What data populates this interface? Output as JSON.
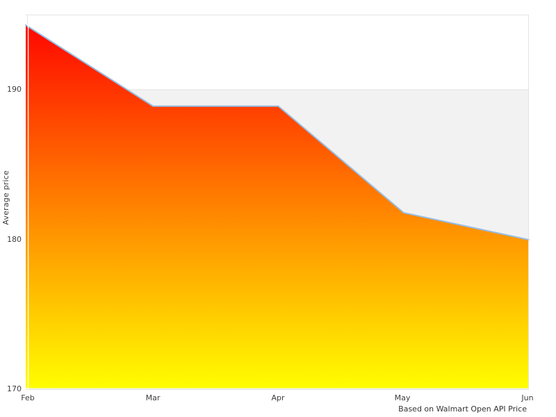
{
  "chart_data": {
    "type": "area",
    "categories": [
      "Feb",
      "Mar",
      "Apr",
      "May",
      "Jun"
    ],
    "values": [
      194.3,
      188.9,
      188.9,
      181.8,
      180.0
    ],
    "series_name": "Average price",
    "title": "",
    "xlabel": "",
    "ylabel": "Average price",
    "ylim": [
      170,
      195
    ],
    "yticks": [
      "170",
      "180",
      "190"
    ],
    "grid": "horizontal-band",
    "band_top_value": 190,
    "legend_position": "none",
    "caption": "Based on Walmart Open API Price",
    "colors": {
      "gradient_top": "#ff0000",
      "gradient_bottom": "#ffff00",
      "line": "#97bce1",
      "band": "#f2f2f2",
      "gridline": "#e2e2e2",
      "border": "#e3e3e3",
      "axis_overlay": "#ffffff",
      "text": "#3d3d3d",
      "background": "#ffffff"
    }
  }
}
